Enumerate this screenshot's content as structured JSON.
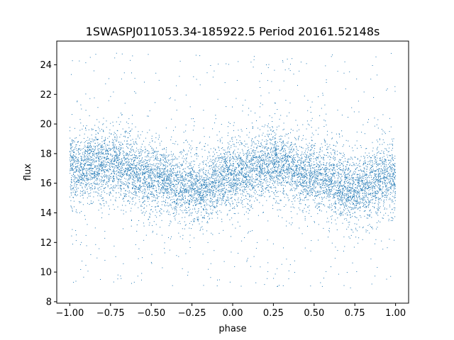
{
  "chart_data": {
    "type": "scatter",
    "title": "1SWASPJ011053.34-185922.5 Period 20161.52148s",
    "xlabel": "phase",
    "ylabel": "flux",
    "xlim": [
      -1.08,
      1.08
    ],
    "ylim": [
      7.9,
      25.6
    ],
    "xticks": [
      -1.0,
      -0.75,
      -0.5,
      -0.25,
      0.0,
      0.25,
      0.5,
      0.75,
      1.0
    ],
    "xtick_labels": [
      "−1.00",
      "−0.75",
      "−0.50",
      "−0.25",
      "0.00",
      "0.25",
      "0.50",
      "0.75",
      "1.00"
    ],
    "yticks": [
      8,
      10,
      12,
      14,
      16,
      18,
      20,
      22,
      24
    ],
    "ytick_labels": [
      "8",
      "10",
      "12",
      "14",
      "16",
      "18",
      "20",
      "22",
      "24"
    ],
    "grid": false,
    "legend": "none",
    "series": [
      {
        "color": "#1f77b4",
        "phase_range": [
          -1.0,
          1.0
        ],
        "flux_range": [
          8.8,
          24.8
        ],
        "mean_flux_trend": {
          "phase": [
            -1.0,
            -0.75,
            -0.5,
            -0.25,
            0.0,
            0.25,
            0.5,
            0.75,
            1.0
          ],
          "flux": [
            17.0,
            17.3,
            16.5,
            15.6,
            16.5,
            17.3,
            16.5,
            15.6,
            16.5
          ]
        },
        "core_scatter_sd": 1.0
      }
    ]
  }
}
